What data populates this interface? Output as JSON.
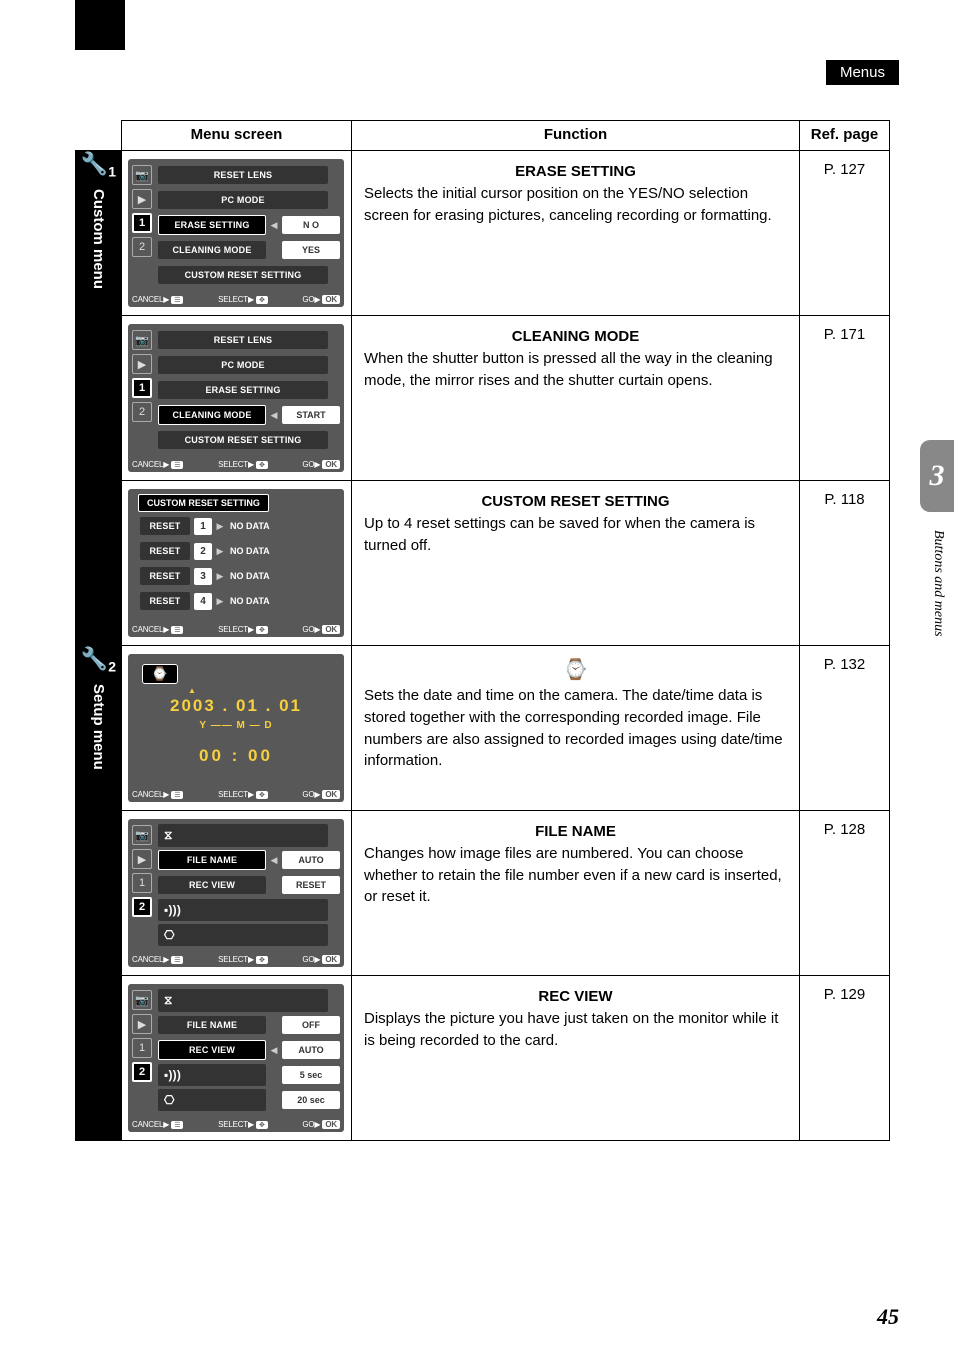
{
  "header_label": "Menus",
  "chapter_number": "3",
  "side_text": "Buttons and menus",
  "page_number": "45",
  "columns": {
    "menu": "Menu screen",
    "func": "Function",
    "ref": "Ref. page"
  },
  "sections": {
    "custom": {
      "icon": "1",
      "label": "Custom menu"
    },
    "setup": {
      "icon": "2",
      "label": "Setup menu"
    }
  },
  "rows": [
    {
      "section": "custom",
      "title": "ERASE SETTING",
      "desc": "Selects the initial cursor position on the YES/NO selection screen for erasing pictures, canceling recording or formatting.",
      "ref": "P. 127",
      "lcd": {
        "type": "menu",
        "highlight": 2,
        "items": [
          {
            "label": "RESET LENS",
            "val": null
          },
          {
            "label": "PC MODE",
            "val": null
          },
          {
            "label": "ERASE SETTING",
            "val": "N O"
          },
          {
            "label": "CLEANING MODE",
            "val": "YES"
          },
          {
            "label": "CUSTOM RESET SETTING",
            "val": null
          }
        ],
        "footer": {
          "cancel": "CANCEL",
          "select": "SELECT",
          "go": "GO",
          "ok": "OK"
        }
      }
    },
    {
      "section": "custom",
      "title": "CLEANING MODE",
      "desc": "When the shutter button is pressed all the way in the cleaning mode, the mirror rises and the shutter curtain opens.",
      "ref": "P. 171",
      "lcd": {
        "type": "menu",
        "highlight": 3,
        "items": [
          {
            "label": "RESET LENS",
            "val": null
          },
          {
            "label": "PC MODE",
            "val": null
          },
          {
            "label": "ERASE SETTING",
            "val": null
          },
          {
            "label": "CLEANING MODE",
            "val": "START"
          },
          {
            "label": "CUSTOM RESET SETTING",
            "val": null
          }
        ],
        "footer": {
          "cancel": "CANCEL",
          "select": "SELECT",
          "go": "GO",
          "ok": "OK"
        }
      }
    },
    {
      "section": "custom",
      "title": "CUSTOM RESET SETTING",
      "desc": "Up to 4 reset settings can be saved for when the camera is turned off.",
      "ref": "P. 118",
      "lcd": {
        "type": "reset",
        "header": "CUSTOM RESET SETTING",
        "resets": [
          {
            "n": "1",
            "d": "NO DATA"
          },
          {
            "n": "2",
            "d": "NO DATA"
          },
          {
            "n": "3",
            "d": "NO DATA"
          },
          {
            "n": "4",
            "d": "NO DATA"
          }
        ],
        "reset_label": "RESET",
        "footer": {
          "cancel": "CANCEL",
          "select": "SELECT",
          "go": "GO",
          "ok": "OK"
        }
      }
    },
    {
      "section": "setup",
      "title": "⧖",
      "desc": "Sets the date and time on the camera. The date/time data is stored together with the corresponding recorded image. File numbers are also assigned to recorded images using date/time information.",
      "ref": "P. 132",
      "lcd": {
        "type": "datetime",
        "date": "2003 . 01 . 01",
        "ymd": "Y —— M — D",
        "time": "00 : 00",
        "footer": {
          "cancel": "CANCEL",
          "select": "SELECT",
          "go": "GO",
          "ok": "OK"
        }
      }
    },
    {
      "section": "setup",
      "title": "FILE NAME",
      "desc": "Changes how image files are numbered. You can choose whether to retain the file number even if a new card is inserted, or reset it.",
      "ref": "P. 128",
      "lcd": {
        "type": "menu2",
        "highlight": 1,
        "items": [
          {
            "label": "⧖",
            "val": null,
            "icon": true
          },
          {
            "label": "FILE NAME",
            "val": "AUTO"
          },
          {
            "label": "REC VIEW",
            "val": "RESET"
          },
          {
            "label": "▪)))",
            "val": null,
            "icon": true
          },
          {
            "label": "⎔",
            "val": null,
            "icon": true
          }
        ],
        "footer": {
          "cancel": "CANCEL",
          "select": "SELECT",
          "go": "GO",
          "ok": "OK"
        }
      }
    },
    {
      "section": "setup",
      "title": "REC VIEW",
      "desc": "Displays the picture you have just taken on the monitor while it is being recorded to the card.",
      "ref": "P. 129",
      "lcd": {
        "type": "menu2",
        "highlight": 2,
        "items": [
          {
            "label": "⧖",
            "val": null,
            "icon": true
          },
          {
            "label": "FILE NAME",
            "val": "OFF"
          },
          {
            "label": "REC VIEW",
            "val": "AUTO"
          },
          {
            "label": "▪)))",
            "val": "5 sec",
            "icon": true
          },
          {
            "label": "⎔",
            "val": "20 sec",
            "icon": true
          }
        ],
        "footer": {
          "cancel": "CANCEL",
          "select": "SELECT",
          "go": "GO",
          "ok": "OK"
        }
      }
    }
  ]
}
